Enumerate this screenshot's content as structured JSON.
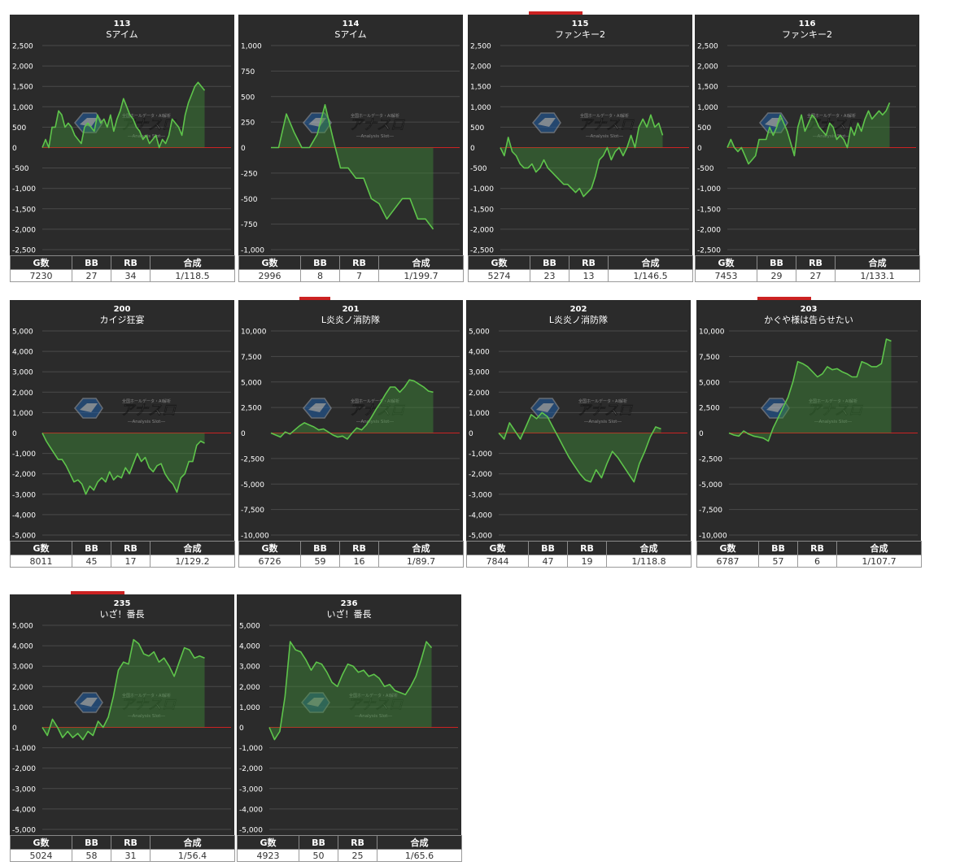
{
  "colors": {
    "panel_bg": "#2b2b2b",
    "line": "#5ec44b",
    "fill": "#3e8c37",
    "zero_line": "#cc2222",
    "grid": "#4a4a4a",
    "text": "#ffffff"
  },
  "watermark": {
    "main": "アナスロ",
    "sub": "―Analysis Slot―",
    "top": "全国ホールデータ・AI解析"
  },
  "table_headers": {
    "games": "G数",
    "bb": "BB",
    "rb": "RB",
    "combined": "合成"
  },
  "chart_data": [
    {
      "type": "line",
      "number": "113",
      "machine": "Sアイム",
      "ylim": [
        -2500,
        2500
      ],
      "yticks": [
        2500,
        2000,
        1500,
        1000,
        500,
        0,
        -500,
        -1000,
        -1500,
        -2000,
        -2500
      ],
      "ytick_labels": [
        "2,500",
        "2,000",
        "1,500",
        "1,000",
        "500",
        "0",
        "-500",
        "-1,000",
        "-1,500",
        "-2,000",
        "-2,500"
      ],
      "values": [
        0,
        200,
        0,
        500,
        500,
        900,
        800,
        500,
        600,
        500,
        300,
        200,
        100,
        500,
        600,
        500,
        400,
        800,
        600,
        700,
        500,
        800,
        400,
        700,
        900,
        1200,
        1000,
        800,
        700,
        500,
        400,
        200,
        300,
        100,
        200,
        300,
        0,
        200,
        100,
        300,
        700,
        600,
        500,
        300,
        800,
        1100,
        1300,
        1500,
        1600,
        1500,
        1400
      ],
      "stats": {
        "games": "7230",
        "bb": "27",
        "rb": "34",
        "combined": "1/118.5"
      }
    },
    {
      "type": "line",
      "number": "114",
      "machine": "Sアイム",
      "ylim": [
        -1000,
        1000
      ],
      "yticks": [
        1000,
        750,
        500,
        250,
        0,
        -250,
        -500,
        -750,
        -1000
      ],
      "ytick_labels": [
        "1,000",
        "750",
        "500",
        "250",
        "0",
        "-250",
        "-500",
        "-750",
        "-1,000"
      ],
      "values": [
        0,
        0,
        330,
        150,
        0,
        0,
        130,
        420,
        100,
        -200,
        -200,
        -300,
        -300,
        -500,
        -550,
        -700,
        -600,
        -500,
        -500,
        -700,
        -700,
        -800
      ],
      "stats": {
        "games": "2996",
        "bb": "8",
        "rb": "7",
        "combined": "1/199.7"
      }
    },
    {
      "type": "line",
      "number": "115",
      "machine": "ファンキー2",
      "ylim": [
        -2500,
        2500
      ],
      "yticks": [
        2500,
        2000,
        1500,
        1000,
        500,
        0,
        -500,
        -1000,
        -1500,
        -2000,
        -2500
      ],
      "ytick_labels": [
        "2,500",
        "2,000",
        "1,500",
        "1,000",
        "500",
        "0",
        "-500",
        "-1,000",
        "-1,500",
        "-2,000",
        "-2,500"
      ],
      "values": [
        0,
        -200,
        250,
        -100,
        -200,
        -400,
        -500,
        -500,
        -400,
        -600,
        -500,
        -300,
        -500,
        -600,
        -700,
        -800,
        -900,
        -900,
        -1000,
        -1100,
        -1000,
        -1200,
        -1100,
        -1000,
        -700,
        -300,
        -200,
        0,
        -300,
        -100,
        0,
        -200,
        0,
        300,
        0,
        500,
        700,
        500,
        800,
        500,
        600,
        300
      ],
      "stats": {
        "games": "5274",
        "bb": "23",
        "rb": "13",
        "combined": "1/146.5"
      }
    },
    {
      "type": "line",
      "number": "116",
      "machine": "ファンキー2",
      "ylim": [
        -2500,
        2500
      ],
      "yticks": [
        2500,
        2000,
        1500,
        1000,
        500,
        0,
        -500,
        -1000,
        -1500,
        -2000,
        -2500
      ],
      "ytick_labels": [
        "2,500",
        "2,000",
        "1,500",
        "1,000",
        "500",
        "0",
        "-500",
        "-1,000",
        "-1,500",
        "-2,000",
        "-2,500"
      ],
      "values": [
        0,
        200,
        0,
        -100,
        0,
        -200,
        -400,
        -300,
        -200,
        200,
        200,
        200,
        500,
        300,
        500,
        800,
        600,
        400,
        100,
        -200,
        500,
        800,
        400,
        600,
        800,
        700,
        500,
        400,
        300,
        600,
        500,
        200,
        300,
        200,
        0,
        500,
        300,
        600,
        400,
        700,
        900,
        700,
        800,
        900,
        800,
        900,
        1100
      ],
      "stats": {
        "games": "7453",
        "bb": "29",
        "rb": "27",
        "combined": "1/133.1"
      }
    },
    {
      "type": "line",
      "number": "200",
      "machine": "カイジ狂宴",
      "ylim": [
        -5000,
        5000
      ],
      "yticks": [
        5000,
        4000,
        3000,
        2000,
        1000,
        0,
        -1000,
        -2000,
        -3000,
        -4000,
        -5000
      ],
      "ytick_labels": [
        "5,000",
        "4,000",
        "3,000",
        "2,000",
        "1,000",
        "0",
        "-1,000",
        "-2,000",
        "-3,000",
        "-4,000",
        "-5,000"
      ],
      "values": [
        0,
        -400,
        -700,
        -1000,
        -1300,
        -1300,
        -1600,
        -2000,
        -2400,
        -2300,
        -2500,
        -3000,
        -2600,
        -2800,
        -2400,
        -2200,
        -2400,
        -1900,
        -2300,
        -2100,
        -2200,
        -1700,
        -2000,
        -1500,
        -1000,
        -1400,
        -1200,
        -1700,
        -1900,
        -1600,
        -1500,
        -2000,
        -2300,
        -2500,
        -2900,
        -2200,
        -2000,
        -1400,
        -1400,
        -600,
        -400,
        -500
      ],
      "stats": {
        "games": "8011",
        "bb": "45",
        "rb": "17",
        "combined": "1/129.2"
      }
    },
    {
      "type": "line",
      "number": "201",
      "machine": "L炎炎ノ消防隊",
      "ylim": [
        -10000,
        10000
      ],
      "yticks": [
        10000,
        7500,
        5000,
        2500,
        0,
        -2500,
        -5000,
        -7500,
        -10000
      ],
      "ytick_labels": [
        "10,000",
        "7,500",
        "5,000",
        "2,500",
        "0",
        "-2,500",
        "-5,000",
        "-7,500",
        "-10,000"
      ],
      "values": [
        0,
        -200,
        -400,
        100,
        -100,
        300,
        700,
        1000,
        800,
        600,
        300,
        400,
        100,
        -200,
        -400,
        -300,
        -600,
        0,
        500,
        300,
        800,
        1500,
        2300,
        3000,
        3800,
        4500,
        4500,
        4000,
        4500,
        5200,
        5100,
        4800,
        4500,
        4100,
        4000
      ],
      "stats": {
        "games": "6726",
        "bb": "59",
        "rb": "16",
        "combined": "1/89.7"
      }
    },
    {
      "type": "line",
      "number": "202",
      "machine": "L炎炎ノ消防隊",
      "ylim": [
        -5000,
        5000
      ],
      "yticks": [
        5000,
        4000,
        3000,
        2000,
        1000,
        0,
        -1000,
        -2000,
        -3000,
        -4000,
        -5000
      ],
      "ytick_labels": [
        "5,000",
        "4,000",
        "3,000",
        "2,000",
        "1,000",
        "0",
        "-1,000",
        "-2,000",
        "-3,000",
        "-4,000",
        "-5,000"
      ],
      "values": [
        0,
        -300,
        500,
        100,
        -300,
        300,
        900,
        700,
        1000,
        800,
        300,
        -200,
        -700,
        -1200,
        -1600,
        -2000,
        -2300,
        -2400,
        -1800,
        -2200,
        -1500,
        -900,
        -1200,
        -1600,
        -2000,
        -2400,
        -1500,
        -900,
        -200,
        300,
        200
      ],
      "stats": {
        "games": "7844",
        "bb": "47",
        "rb": "19",
        "combined": "1/118.8"
      }
    },
    {
      "type": "line",
      "number": "203",
      "machine": "かぐや様は告らせたい",
      "ylim": [
        -10000,
        10000
      ],
      "yticks": [
        10000,
        7500,
        5000,
        2500,
        0,
        -2500,
        -5000,
        -7500,
        -10000
      ],
      "ytick_labels": [
        "10,000",
        "7,500",
        "5,000",
        "2,500",
        "0",
        "-2,500",
        "-5,000",
        "-7,500",
        "-10,000"
      ],
      "values": [
        0,
        -200,
        -300,
        200,
        -100,
        -300,
        -400,
        -500,
        -800,
        500,
        1500,
        2500,
        3500,
        5000,
        7000,
        6800,
        6500,
        6000,
        5500,
        5800,
        6500,
        6200,
        6300,
        6000,
        5800,
        5500,
        5500,
        7000,
        6800,
        6500,
        6500,
        6800,
        9200,
        9000
      ],
      "stats": {
        "games": "6787",
        "bb": "57",
        "rb": "6",
        "combined": "1/107.7"
      }
    },
    {
      "type": "line",
      "number": "235",
      "machine": "いざ！番長",
      "ylim": [
        -5000,
        5000
      ],
      "yticks": [
        5000,
        4000,
        3000,
        2000,
        1000,
        0,
        -1000,
        -2000,
        -3000,
        -4000,
        -5000
      ],
      "ytick_labels": [
        "5,000",
        "4,000",
        "3,000",
        "2,000",
        "1,000",
        "0",
        "-1,000",
        "-2,000",
        "-3,000",
        "-4,000",
        "-5,000"
      ],
      "values": [
        0,
        -400,
        400,
        0,
        -500,
        -200,
        -500,
        -300,
        -600,
        -200,
        -400,
        300,
        0,
        500,
        1500,
        2800,
        3200,
        3100,
        4300,
        4100,
        3600,
        3500,
        3700,
        3200,
        3400,
        3000,
        2500,
        3200,
        3900,
        3800,
        3400,
        3500,
        3400
      ],
      "stats": {
        "games": "5024",
        "bb": "58",
        "rb": "31",
        "combined": "1/56.4"
      }
    },
    {
      "type": "line",
      "number": "236",
      "machine": "いざ！番長",
      "ylim": [
        -5000,
        5000
      ],
      "yticks": [
        5000,
        4000,
        3000,
        2000,
        1000,
        0,
        -1000,
        -2000,
        -3000,
        -4000,
        -5000
      ],
      "ytick_labels": [
        "5,000",
        "4,000",
        "3,000",
        "2,000",
        "1,000",
        "0",
        "-1,000",
        "-2,000",
        "-3,000",
        "-4,000",
        "-5,000"
      ],
      "values": [
        0,
        -600,
        -200,
        1500,
        4200,
        3800,
        3700,
        3300,
        2800,
        3200,
        3100,
        2700,
        2200,
        2000,
        2600,
        3100,
        3000,
        2700,
        2800,
        2500,
        2600,
        2400,
        2000,
        2100,
        1800,
        1700,
        1600,
        2000,
        2500,
        3300,
        4200,
        3900
      ],
      "stats": {
        "games": "4923",
        "bb": "50",
        "rb": "25",
        "combined": "1/65.6"
      }
    }
  ]
}
